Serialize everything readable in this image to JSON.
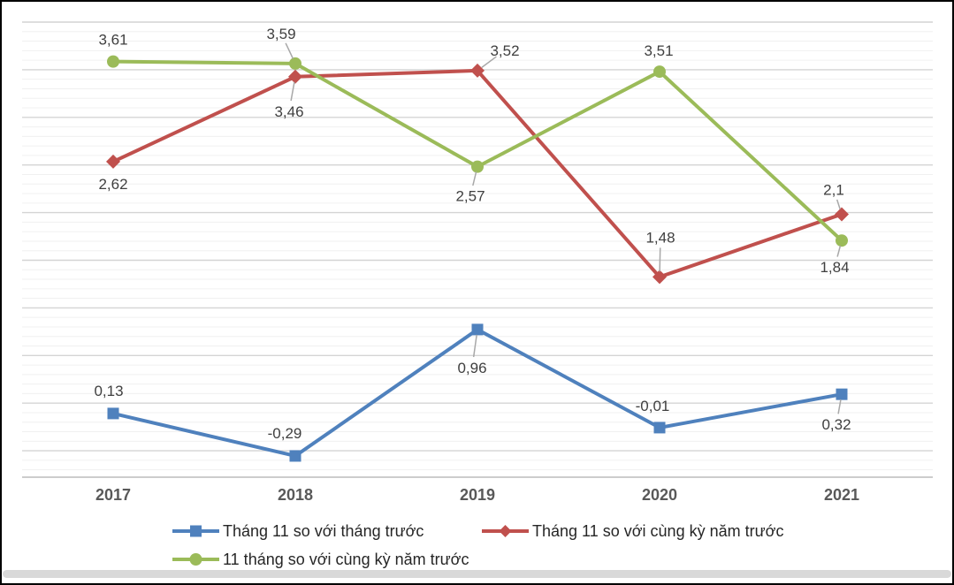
{
  "chart_data": {
    "type": "line",
    "title": "",
    "categories": [
      "2017",
      "2018",
      "2019",
      "2020",
      "2021"
    ],
    "series": [
      {
        "name": "Tháng 11 so với tháng trước",
        "color": "#4F81BD",
        "marker": "square",
        "values": [
          0.13,
          -0.29,
          0.96,
          -0.01,
          0.32
        ],
        "labels": [
          "0,13",
          "-0,29",
          "0,96",
          "-0,01",
          "0,32"
        ]
      },
      {
        "name": "Tháng 11 so với cùng kỳ năm trước",
        "color": "#C0504D",
        "marker": "diamond",
        "values": [
          2.62,
          3.46,
          3.52,
          1.48,
          2.1
        ],
        "labels": [
          "2,62",
          "3,46",
          "3,52",
          "1,48",
          "2,1"
        ]
      },
      {
        "name": "11 tháng so với cùng kỳ năm trước",
        "color": "#9BBB59",
        "marker": "circle",
        "values": [
          3.61,
          3.59,
          2.57,
          3.51,
          1.84
        ],
        "labels": [
          "3,61",
          "3,59",
          "2,57",
          "3,51",
          "1,84"
        ]
      }
    ],
    "ylim": [
      -0.5,
      4.0
    ],
    "y_axis_labels_visible": false,
    "grid": {
      "horizontal": true,
      "major_color": "#d4d4d4",
      "minor_color": "#f0f0f0"
    },
    "axis_line_color": "#bcbcbc",
    "data_label_color": "#3f3f3f",
    "leader_line_color": "#a8a8a8",
    "legend_position": "bottom"
  }
}
